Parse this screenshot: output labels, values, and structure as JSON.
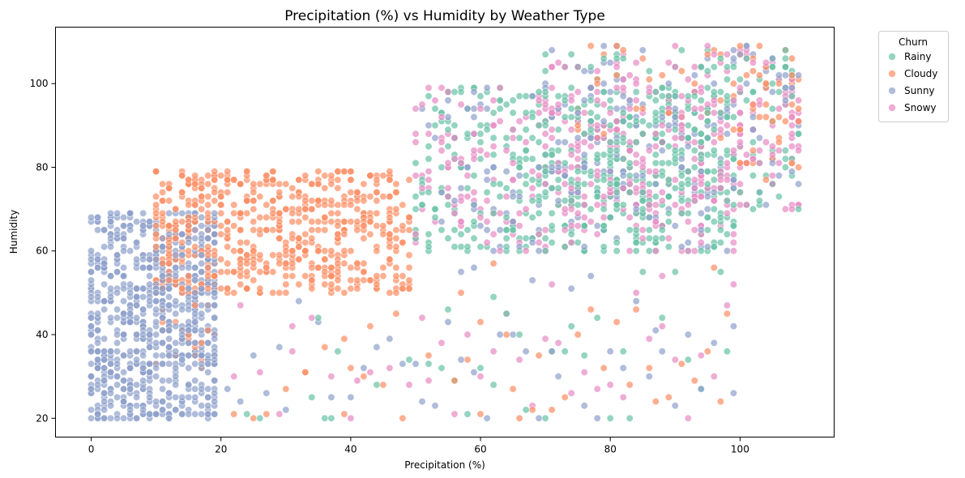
{
  "chart_data": {
    "type": "scatter",
    "title": "Precipitation (%) vs Humidity by Weather Type",
    "xlabel": "Precipitation (%)",
    "ylabel": "Humidity",
    "xlim": [
      -5.5,
      114.5
    ],
    "ylim": [
      15.5,
      113.5
    ],
    "x_ticks": [
      0,
      20,
      40,
      60,
      80,
      100
    ],
    "y_ticks": [
      20,
      40,
      60,
      80,
      100
    ],
    "grid": false,
    "legend_placement": "outside-top-right",
    "legend_title": "Churn",
    "point_alpha": 0.7,
    "series": [
      {
        "name": "Rainy",
        "color": "#66c2a5",
        "clusters": [
          {
            "x_range": [
              50,
              99
            ],
            "y_range": [
              60,
              99
            ],
            "n": 380
          },
          {
            "x_range": [
              70,
              99
            ],
            "y_range": [
              60,
              108
            ],
            "n": 160
          },
          {
            "x_range": [
              100,
              109
            ],
            "y_range": [
              70,
              109
            ],
            "n": 45
          }
        ],
        "points": [
          [
            24,
            21
          ],
          [
            26,
            20
          ],
          [
            34,
            25
          ],
          [
            36,
            20
          ],
          [
            37,
            20
          ],
          [
            38,
            36
          ],
          [
            44,
            28
          ],
          [
            49,
            34
          ],
          [
            52,
            33
          ],
          [
            54,
            32
          ],
          [
            56,
            29
          ],
          [
            58,
            21
          ],
          [
            60,
            32
          ],
          [
            62,
            28
          ],
          [
            66,
            40
          ],
          [
            67,
            22
          ],
          [
            70,
            20
          ],
          [
            71,
            36
          ],
          [
            73,
            36
          ],
          [
            74,
            42
          ],
          [
            76,
            35
          ],
          [
            80,
            20
          ],
          [
            82,
            36
          ],
          [
            83,
            20
          ],
          [
            85,
            55
          ],
          [
            88,
            44
          ],
          [
            90,
            55
          ],
          [
            92,
            34
          ],
          [
            94,
            27
          ],
          [
            97,
            55
          ],
          [
            98,
            36
          ],
          [
            55,
            46
          ],
          [
            62,
            49
          ],
          [
            64,
            45
          ],
          [
            78,
            44
          ],
          [
            35,
            44
          ]
        ]
      },
      {
        "name": "Cloudy",
        "color": "#fc8d62",
        "clusters": [
          {
            "x_range": [
              10,
              49
            ],
            "y_range": [
              50,
              79
            ],
            "n": 600
          },
          {
            "x_range": [
              10,
              19
            ],
            "y_range": [
              30,
              79
            ],
            "n": 50
          },
          {
            "x_range": [
              100,
              109
            ],
            "y_range": [
              75,
              109
            ],
            "n": 45
          },
          {
            "x_range": [
              75,
              99
            ],
            "y_range": [
              86,
              109
            ],
            "n": 35
          }
        ],
        "points": [
          [
            22,
            21
          ],
          [
            25,
            20
          ],
          [
            27,
            21
          ],
          [
            30,
            27
          ],
          [
            33,
            31
          ],
          [
            36,
            37
          ],
          [
            39,
            21
          ],
          [
            40,
            32
          ],
          [
            42,
            30
          ],
          [
            45,
            28
          ],
          [
            48,
            20
          ],
          [
            52,
            35
          ],
          [
            56,
            29
          ],
          [
            58,
            34
          ],
          [
            60,
            21
          ],
          [
            62,
            57
          ],
          [
            65,
            27
          ],
          [
            66,
            20
          ],
          [
            68,
            22
          ],
          [
            69,
            35
          ],
          [
            71,
            22
          ],
          [
            73,
            25
          ],
          [
            75,
            40
          ],
          [
            77,
            46
          ],
          [
            79,
            32
          ],
          [
            81,
            43
          ],
          [
            83,
            28
          ],
          [
            84,
            46
          ],
          [
            86,
            32
          ],
          [
            87,
            24
          ],
          [
            89,
            25
          ],
          [
            91,
            33
          ],
          [
            93,
            29
          ],
          [
            95,
            36
          ],
          [
            96,
            56
          ],
          [
            97,
            24
          ],
          [
            98,
            45
          ],
          [
            57,
            50
          ],
          [
            60,
            43
          ],
          [
            64,
            40
          ],
          [
            47,
            45
          ],
          [
            43,
            42
          ],
          [
            39,
            39
          ],
          [
            33,
            31
          ]
        ]
      },
      {
        "name": "Sunny",
        "color": "#8da0cb",
        "clusters": [
          {
            "x_range": [
              0,
              19
            ],
            "y_range": [
              20,
              69
            ],
            "n": 760
          },
          {
            "x_range": [
              50,
              99
            ],
            "y_range": [
              60,
              99
            ],
            "n": 110
          },
          {
            "x_range": [
              70,
              109
            ],
            "y_range": [
              70,
              109
            ],
            "n": 120
          }
        ],
        "points": [
          [
            21,
            27
          ],
          [
            23,
            24
          ],
          [
            25,
            35
          ],
          [
            27,
            26
          ],
          [
            29,
            37
          ],
          [
            30,
            22
          ],
          [
            32,
            48
          ],
          [
            35,
            43
          ],
          [
            37,
            25
          ],
          [
            40,
            25
          ],
          [
            42,
            32
          ],
          [
            44,
            37
          ],
          [
            46,
            39
          ],
          [
            48,
            33
          ],
          [
            50,
            33
          ],
          [
            51,
            24
          ],
          [
            53,
            23
          ],
          [
            55,
            43
          ],
          [
            57,
            34
          ],
          [
            59,
            31
          ],
          [
            61,
            20
          ],
          [
            63,
            40
          ],
          [
            65,
            40
          ],
          [
            67,
            36
          ],
          [
            69,
            20
          ],
          [
            71,
            36
          ],
          [
            72,
            30
          ],
          [
            74,
            51
          ],
          [
            76,
            23
          ],
          [
            78,
            20
          ],
          [
            80,
            36
          ],
          [
            82,
            32
          ],
          [
            84,
            48
          ],
          [
            86,
            30
          ],
          [
            88,
            36
          ],
          [
            90,
            23
          ],
          [
            92,
            40
          ],
          [
            94,
            27
          ],
          [
            96,
            38
          ],
          [
            99,
            26
          ],
          [
            99,
            42
          ],
          [
            57,
            55
          ],
          [
            59,
            56
          ],
          [
            68,
            53
          ],
          [
            77,
            54
          ],
          [
            87,
            41
          ]
        ]
      },
      {
        "name": "Snowy",
        "color": "#e78ac3",
        "clusters": [
          {
            "x_range": [
              50,
              99
            ],
            "y_range": [
              60,
              99
            ],
            "n": 280
          },
          {
            "x_range": [
              70,
              109
            ],
            "y_range": [
              70,
              109
            ],
            "n": 140
          },
          {
            "x_range": [
              100,
              109
            ],
            "y_range": [
              70,
              100
            ],
            "n": 35
          }
        ],
        "points": [
          [
            22,
            30
          ],
          [
            26,
            31
          ],
          [
            29,
            21
          ],
          [
            31,
            36
          ],
          [
            34,
            44
          ],
          [
            37,
            30
          ],
          [
            40,
            20
          ],
          [
            41,
            29
          ],
          [
            43,
            31
          ],
          [
            46,
            32
          ],
          [
            49,
            28
          ],
          [
            51,
            44
          ],
          [
            52,
            29
          ],
          [
            54,
            38
          ],
          [
            56,
            21
          ],
          [
            58,
            40
          ],
          [
            60,
            30
          ],
          [
            62,
            36
          ],
          [
            64,
            45
          ],
          [
            66,
            34
          ],
          [
            68,
            23
          ],
          [
            70,
            39
          ],
          [
            72,
            38
          ],
          [
            74,
            26
          ],
          [
            76,
            31
          ],
          [
            78,
            27
          ],
          [
            80,
            28
          ],
          [
            82,
            25
          ],
          [
            84,
            50
          ],
          [
            86,
            39
          ],
          [
            88,
            42
          ],
          [
            90,
            34
          ],
          [
            92,
            20
          ],
          [
            94,
            35
          ],
          [
            96,
            30
          ],
          [
            98,
            47
          ],
          [
            99,
            52
          ],
          [
            23,
            47
          ],
          [
            31,
            42
          ],
          [
            71,
            52
          ],
          [
            88,
            54
          ]
        ]
      }
    ]
  }
}
